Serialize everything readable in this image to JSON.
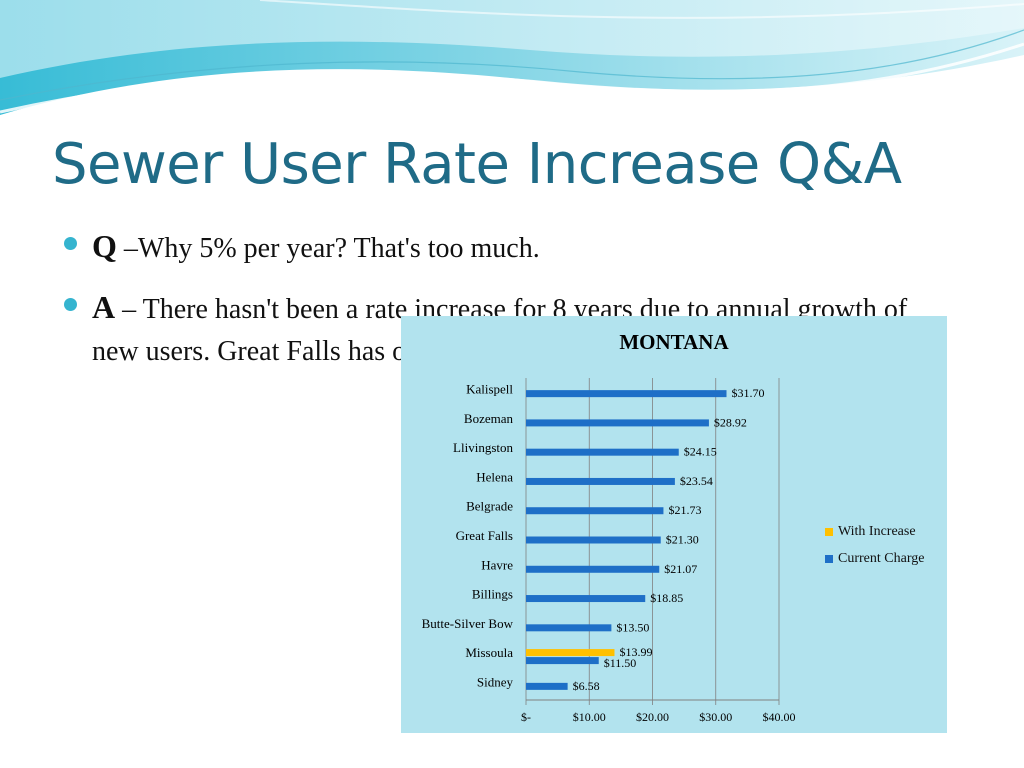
{
  "title": "Sewer User Rate Increase Q&A",
  "bullets": [
    {
      "lead": "Q",
      "text": " –Why 5% per year? That's too much."
    },
    {
      "lead": "A",
      "text": " – There hasn't been a rate increase for 8 years due to annual growth of new users. Great Falls has one of the lowest user rates in Montana."
    }
  ],
  "colors": {
    "title": "#1f6b87",
    "bullet_dot": "#35b4cf",
    "chart_bg": "#b2e3ee",
    "current_charge": "#1e6fc7",
    "with_increase": "#ffc000"
  },
  "chart_data": {
    "type": "bar",
    "orientation": "horizontal",
    "title": "MONTANA",
    "categories": [
      "Kalispell",
      "Bozeman",
      "Llivingston",
      "Helena",
      "Belgrade",
      "Great Falls",
      "Havre",
      "Billings",
      "Butte-Silver Bow",
      "Missoula",
      "Sidney"
    ],
    "series": [
      {
        "name": "With Increase",
        "color": "#ffc000",
        "values": [
          null,
          null,
          null,
          null,
          null,
          null,
          null,
          null,
          null,
          13.99,
          null
        ],
        "labels": [
          "",
          "",
          "",
          "",
          "",
          "",
          "",
          "",
          "",
          "$13.99",
          ""
        ]
      },
      {
        "name": "Current Charge",
        "color": "#1e6fc7",
        "values": [
          31.7,
          28.92,
          24.15,
          23.54,
          21.73,
          21.3,
          21.07,
          18.85,
          13.5,
          11.5,
          6.58
        ],
        "labels": [
          "$31.70",
          "$28.92",
          "$24.15",
          "$23.54",
          "$21.73",
          "$21.30",
          "$21.07",
          "$18.85",
          "$13.50",
          "$11.50",
          "$6.58"
        ]
      }
    ],
    "xlim": [
      0,
      40
    ],
    "x_ticks": [
      0,
      10,
      20,
      30,
      40
    ],
    "x_tick_labels": [
      "$-",
      "$10.00",
      "$20.00",
      "$30.00",
      "$40.00"
    ],
    "grid": "vertical",
    "legend": "right"
  }
}
